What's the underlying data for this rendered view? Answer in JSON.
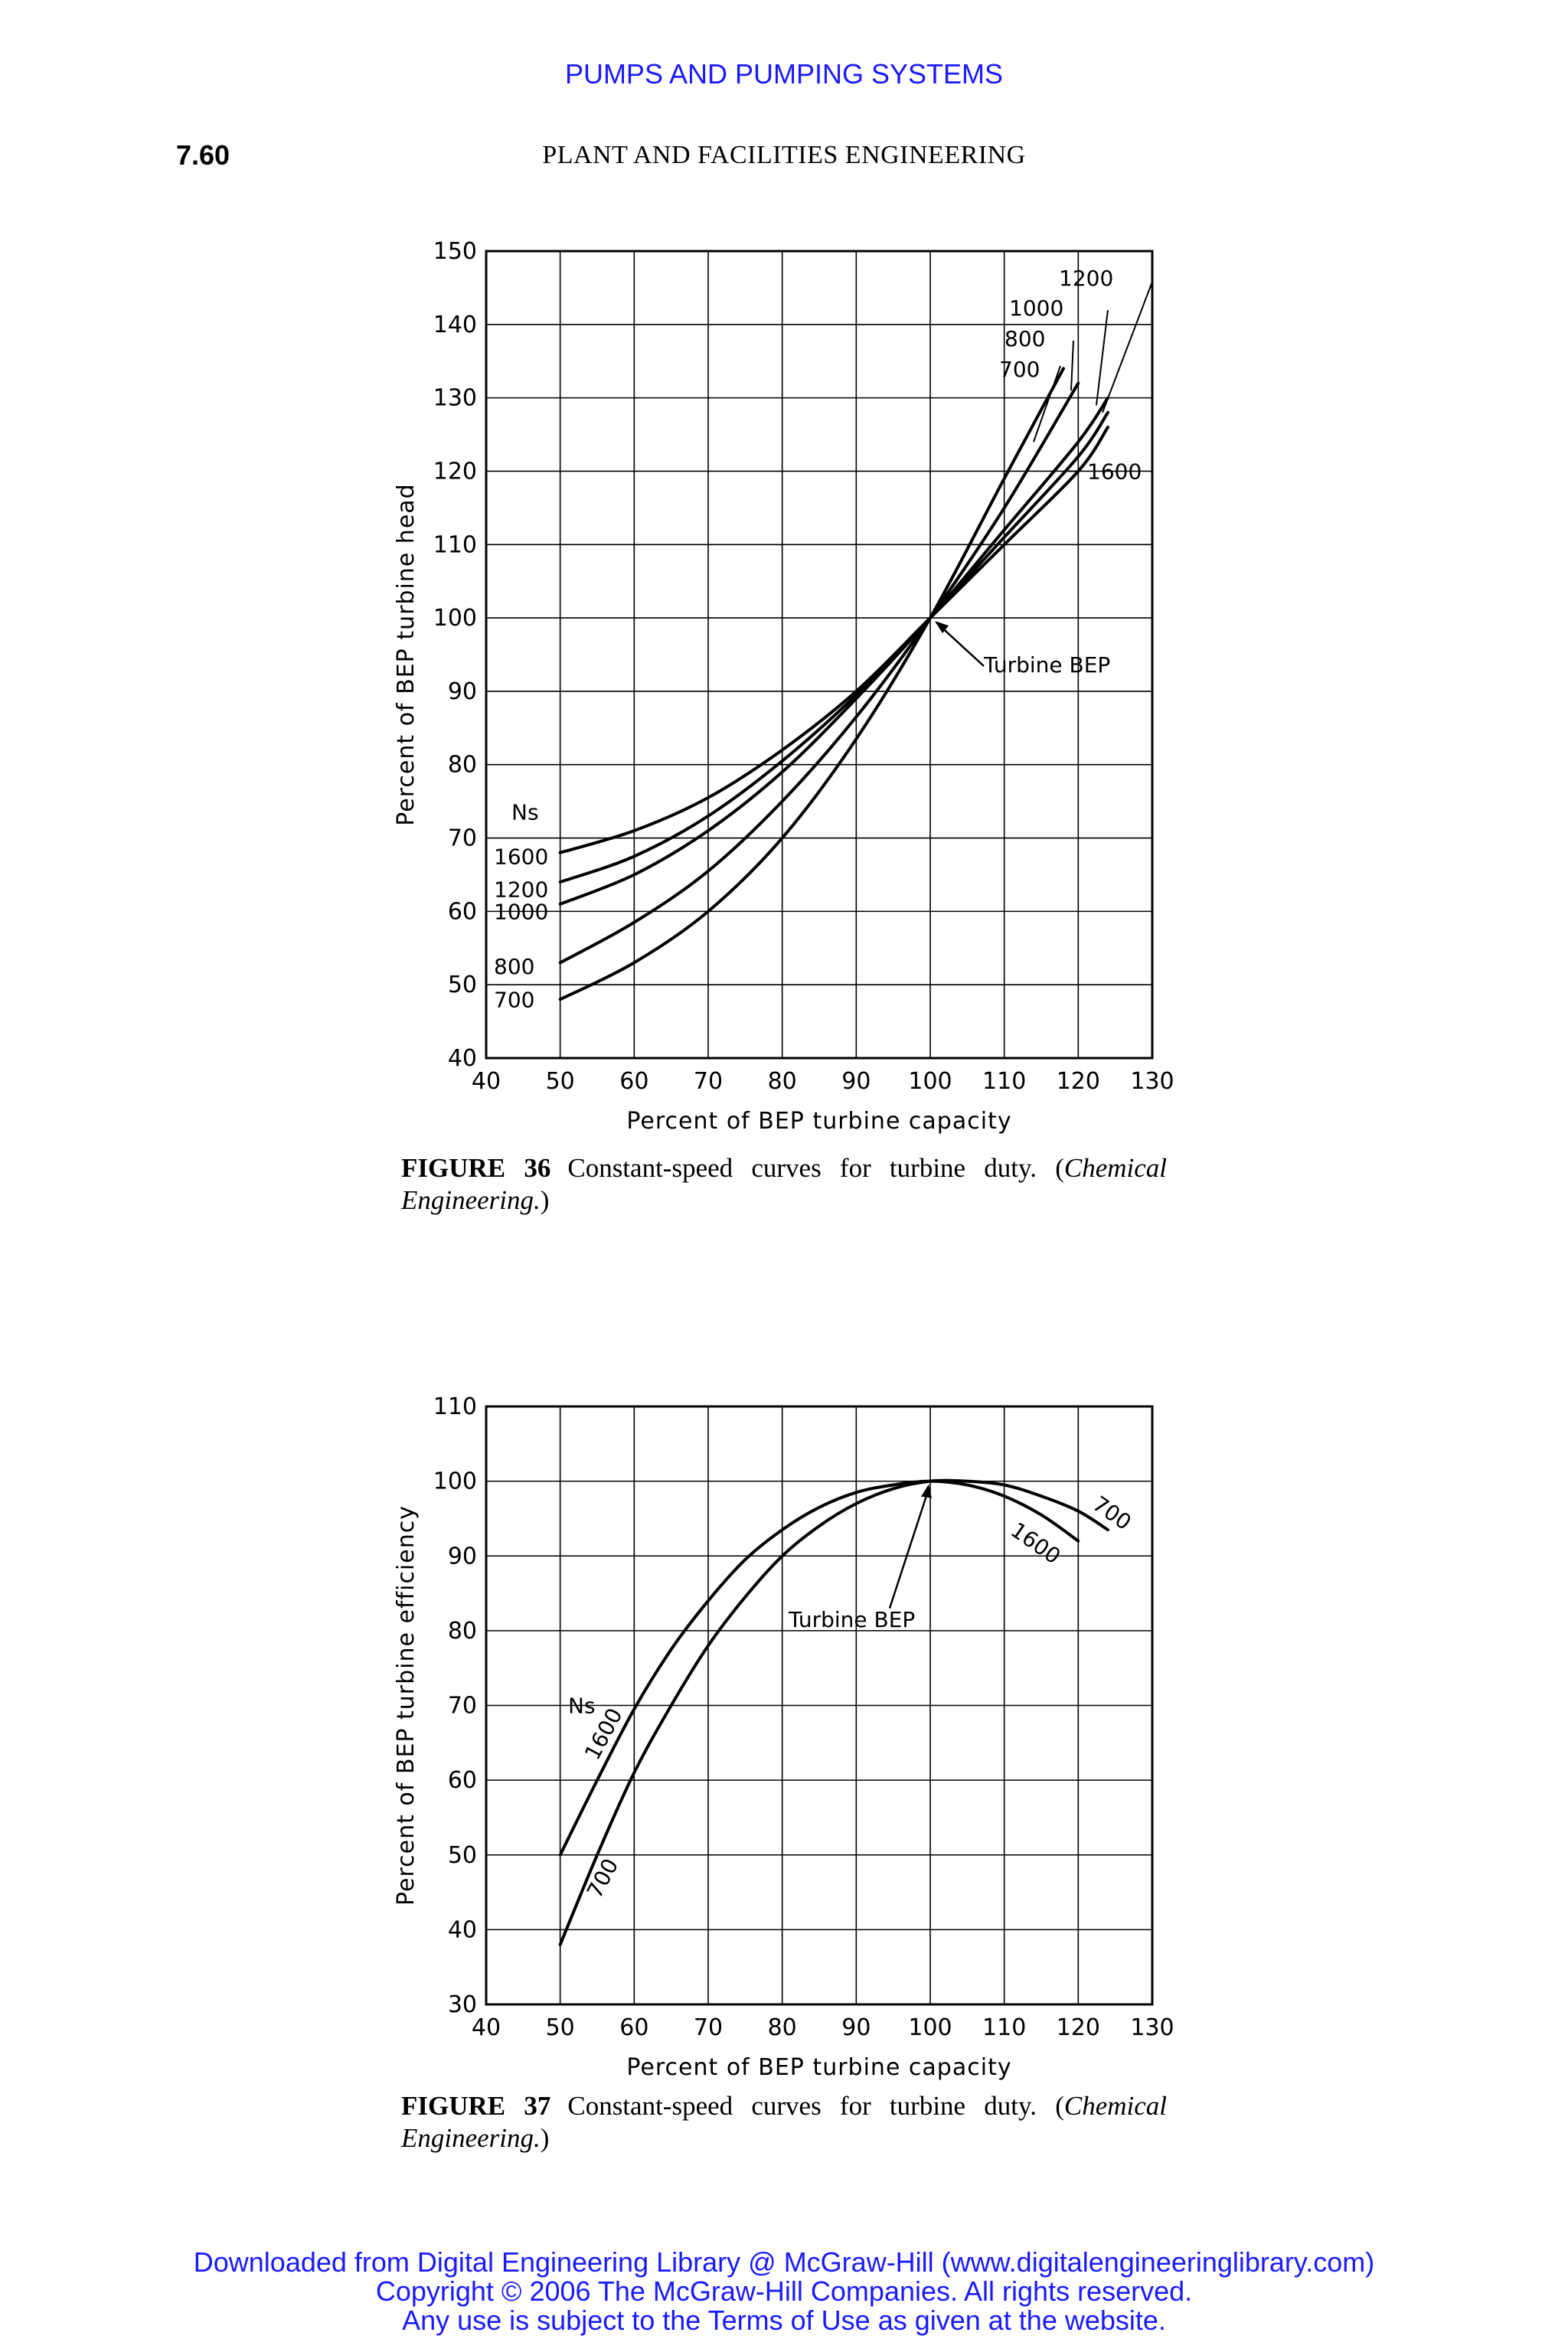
{
  "header": {
    "banner": "PUMPS AND PUMPING SYSTEMS",
    "page_number": "7.60",
    "running_head": "PLANT AND FACILITIES ENGINEERING"
  },
  "figures": [
    {
      "caption_label": "FIGURE 36",
      "caption_text": "Constant-speed curves for turbine duty. (",
      "caption_source": "Chemical Engineering.",
      "caption_close": ")"
    },
    {
      "caption_label": "FIGURE 37",
      "caption_text": "Constant-speed curves for turbine duty. (",
      "caption_source": "Chemical Engineering.",
      "caption_close": ")"
    }
  ],
  "chart_data": [
    {
      "type": "line",
      "title": "",
      "xlabel": "Percent of BEP turbine capacity",
      "ylabel": "Percent of BEP turbine head",
      "xlim": [
        40,
        130
      ],
      "ylim": [
        40,
        150
      ],
      "xticks": [
        "40",
        "50",
        "60",
        "70",
        "80",
        "90",
        "100",
        "110",
        "120",
        "130"
      ],
      "yticks": [
        "40",
        "50",
        "60",
        "70",
        "80",
        "90",
        "100",
        "110",
        "120",
        "130",
        "140",
        "150"
      ],
      "grid": true,
      "legend_title": "Ns",
      "annotation": "Turbine BEP",
      "bep": [
        100,
        100
      ],
      "series": [
        {
          "name": "1600",
          "x": [
            50,
            60,
            70,
            80,
            90,
            100,
            110,
            120,
            124
          ],
          "y": [
            68,
            71,
            75.5,
            82,
            90,
            100,
            110,
            120,
            126
          ]
        },
        {
          "name": "1200",
          "x": [
            50,
            60,
            70,
            80,
            90,
            100,
            110,
            120,
            124
          ],
          "y": [
            64,
            67.5,
            73,
            80.5,
            89.5,
            100,
            111,
            122,
            128
          ]
        },
        {
          "name": "1000",
          "x": [
            50,
            60,
            70,
            80,
            90,
            100,
            110,
            120,
            124
          ],
          "y": [
            61,
            65,
            71,
            79,
            89,
            100,
            112,
            124,
            130
          ]
        },
        {
          "name": "800",
          "x": [
            50,
            60,
            70,
            80,
            90,
            100,
            110,
            120
          ],
          "y": [
            53,
            58.5,
            65.5,
            75,
            86.5,
            100,
            115,
            132
          ]
        },
        {
          "name": "700",
          "x": [
            50,
            60,
            70,
            80,
            90,
            100,
            110,
            118
          ],
          "y": [
            48,
            53,
            60,
            70,
            83.5,
            100,
            119,
            134
          ]
        }
      ]
    },
    {
      "type": "line",
      "title": "",
      "xlabel": "Percent of BEP turbine capacity",
      "ylabel": "Percent of BEP turbine efficiency",
      "xlim": [
        40,
        130
      ],
      "ylim": [
        30,
        110
      ],
      "xticks": [
        "40",
        "50",
        "60",
        "70",
        "80",
        "90",
        "100",
        "110",
        "120",
        "130"
      ],
      "yticks": [
        "30",
        "40",
        "50",
        "60",
        "70",
        "80",
        "90",
        "100",
        "110"
      ],
      "grid": true,
      "legend_title": "Ns",
      "annotation": "Turbine BEP",
      "bep": [
        100,
        100
      ],
      "series": [
        {
          "name": "1600",
          "x": [
            50,
            55,
            60,
            65,
            70,
            75,
            80,
            85,
            90,
            95,
            100,
            105,
            110,
            115,
            120
          ],
          "y": [
            50,
            60,
            69.5,
            77.5,
            84,
            89.5,
            93.5,
            96.5,
            98.5,
            99.5,
            100,
            99.5,
            98,
            95.5,
            92
          ]
        },
        {
          "name": "700",
          "x": [
            50,
            55,
            60,
            65,
            70,
            75,
            80,
            85,
            90,
            95,
            100,
            105,
            110,
            115,
            120,
            124
          ],
          "y": [
            38,
            50,
            61,
            70,
            78,
            84.5,
            90,
            94,
            97,
            99,
            100,
            100,
            99.5,
            98,
            96,
            93.5
          ]
        }
      ]
    }
  ]
}
